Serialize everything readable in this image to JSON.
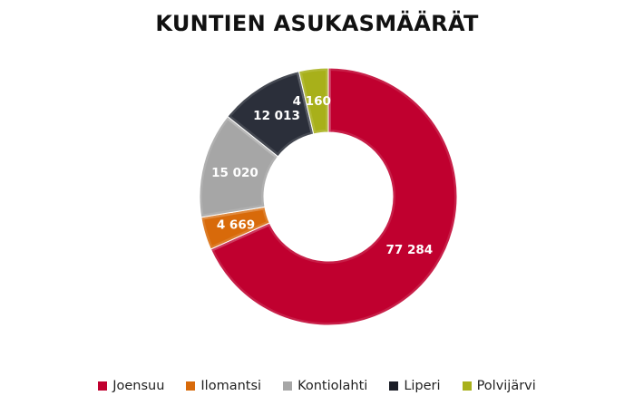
{
  "chart_data": {
    "type": "pie",
    "variant": "donut",
    "title": "KUNTIEN ASUKASMÄÄRÄT",
    "categories": [
      "Joensuu",
      "Ilomantsi",
      "Kontiolahti",
      "Liperi",
      "Polvijärvi"
    ],
    "values": [
      77284,
      4669,
      15020,
      12013,
      4160
    ],
    "data_labels": [
      "77 284",
      "4 669",
      "15 020",
      "12 013",
      "4 160"
    ],
    "colors": [
      "#c0002f",
      "#d86a0a",
      "#a6a6a6",
      "#2b2f3a",
      "#a8b01a"
    ],
    "legend_position": "bottom",
    "start_angle_deg": 0,
    "direction": "clockwise"
  },
  "title": "KUNTIEN ASUKASMÄÄRÄT",
  "legend": [
    {
      "label": "Joensuu",
      "color": "#c0002f"
    },
    {
      "label": "Ilomantsi",
      "color": "#d86a0a"
    },
    {
      "label": "Kontiolahti",
      "color": "#a6a6a6"
    },
    {
      "label": "Liperi",
      "color": "#1a1d26"
    },
    {
      "label": "Polvijärvi",
      "color": "#a8b01a"
    }
  ]
}
